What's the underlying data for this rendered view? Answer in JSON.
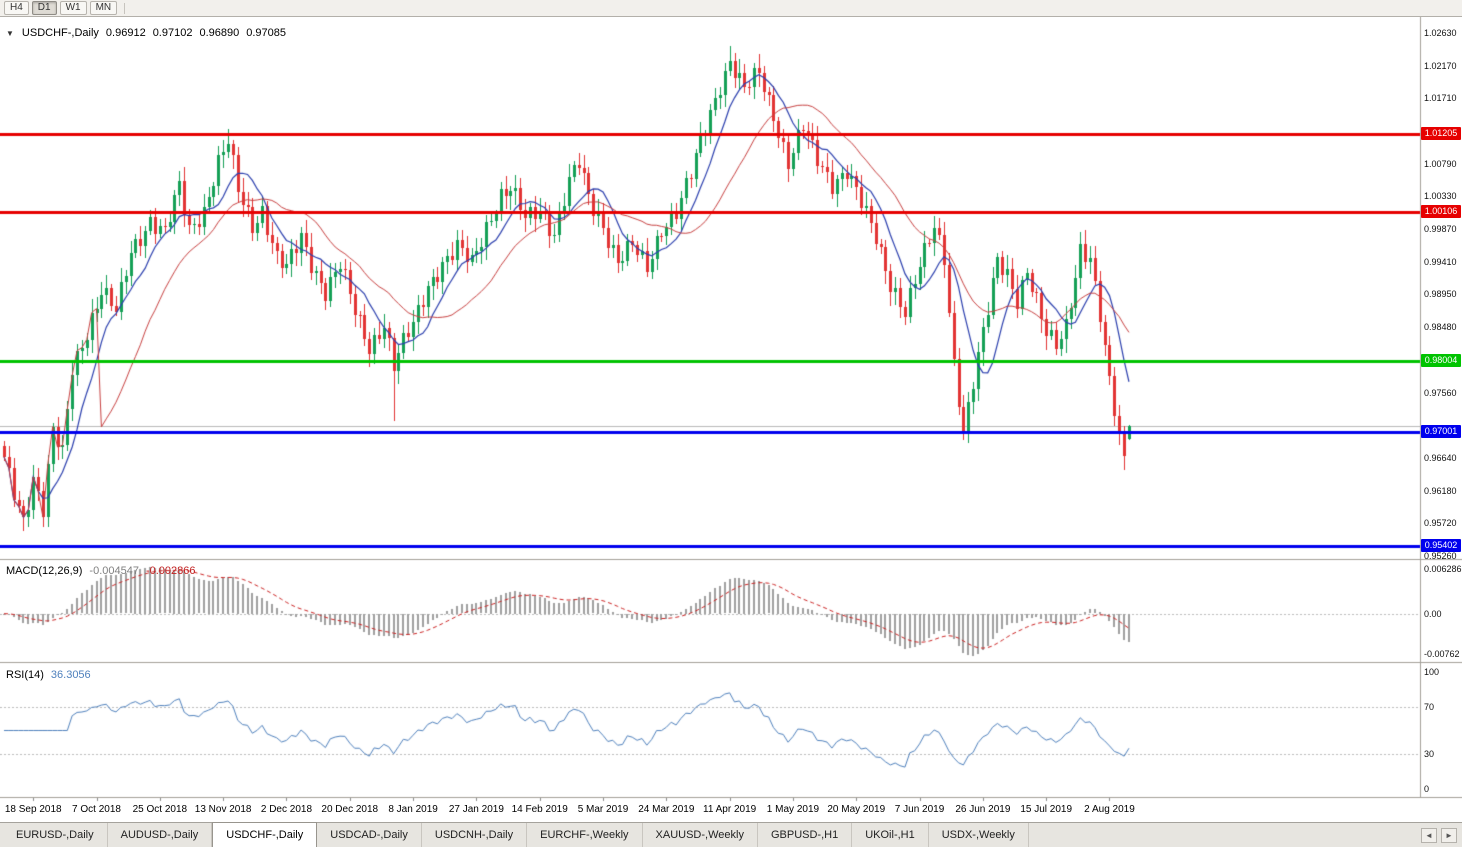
{
  "toolbar": {
    "timeframes": [
      "H4",
      "D1",
      "W1",
      "MN"
    ],
    "active": "D1"
  },
  "icons": {
    "chart_collapse": "▼",
    "tab_scroll_left": "◄",
    "tab_scroll_right": "►"
  },
  "chart_title": {
    "symbol": "USDCHF-,Daily",
    "open": "0.96912",
    "high": "0.97102",
    "low": "0.96890",
    "close": "0.97085"
  },
  "indicators": {
    "macd": {
      "name": "MACD(12,26,9)",
      "value_main": "-0.004547",
      "value_signal": "-0.002866"
    },
    "rsi": {
      "name": "RSI(14)",
      "value": "36.3056"
    }
  },
  "tabs": {
    "items": [
      "EURUSD-,Daily",
      "AUDUSD-,Daily",
      "USDCHF-,Daily",
      "USDCAD-,Daily",
      "USDCNH-,Daily",
      "EURCHF-,Weekly",
      "XAUUSD-,Weekly",
      "GBPUSD-,H1",
      "UKOil-,H1",
      "USDX-,Weekly"
    ],
    "active_index": 2
  },
  "chart_data": {
    "type": "candlestick",
    "symbol": "USDCHF-",
    "timeframe": "Daily",
    "last_quote": {
      "open": 0.96912,
      "high": 0.97102,
      "low": 0.9689,
      "close": 0.97085
    },
    "x_labels": [
      "18 Sep 2018",
      "7 Oct 2018",
      "25 Oct 2018",
      "13 Nov 2018",
      "2 Dec 2018",
      "20 Dec 2018",
      "8 Jan 2019",
      "27 Jan 2019",
      "14 Feb 2019",
      "5 Mar 2019",
      "24 Mar 2019",
      "11 Apr 2019",
      "1 May 2019",
      "20 May 2019",
      "7 Jun 2019",
      "26 Jun 2019",
      "15 Jul 2019",
      "2 Aug 2019"
    ],
    "candles_per_label": 13,
    "total_candles": 232,
    "price_axis": {
      "max": 1.0263,
      "min": 0.9526,
      "ticks": [
        1.0263,
        1.0217,
        1.0171,
        1.0079,
        1.0033,
        0.9987,
        0.9941,
        0.9895,
        0.9848,
        0.9756,
        0.9664,
        0.9618,
        0.9572,
        0.9526
      ]
    },
    "levels": [
      {
        "price": 1.01205,
        "color": "#e60000",
        "width": 3
      },
      {
        "price": 1.00106,
        "color": "#e60000",
        "width": 3
      },
      {
        "price": 0.98004,
        "color": "#00c300",
        "width": 3
      },
      {
        "price": 0.97001,
        "color": "#0000ee",
        "width": 3
      },
      {
        "price": 0.95402,
        "color": "#0000ee",
        "width": 3
      }
    ],
    "bid_line": {
      "price": 0.97085,
      "color": "#b9b9b9"
    },
    "candle_colors": {
      "up": "#15a056",
      "down": "#e23434"
    },
    "ma_lines": [
      {
        "name": "ma-fast",
        "color": "#2b3fae"
      },
      {
        "name": "ma-slow",
        "color": "#c84040"
      }
    ],
    "macd_panel": {
      "params": [
        12,
        26,
        9
      ],
      "hist_color": "#a0a0a0",
      "signal_color": "#cc2222",
      "axis_ticks": [
        "0.006286",
        "0.00",
        "-0.00762"
      ]
    },
    "rsi_panel": {
      "period": 14,
      "line_color": "#4f81bd",
      "levels": [
        70,
        30
      ],
      "axis_ticks": [
        100,
        70,
        30,
        0
      ]
    },
    "close_path_anchors": [
      [
        0,
        0.966
      ],
      [
        2,
        0.9615
      ],
      [
        4,
        0.9578
      ],
      [
        6,
        0.9638
      ],
      [
        8,
        0.9592
      ],
      [
        10,
        0.97
      ],
      [
        12,
        0.9668
      ],
      [
        14,
        0.979
      ],
      [
        17,
        0.9845
      ],
      [
        20,
        0.99
      ],
      [
        23,
        0.9868
      ],
      [
        26,
        0.9955
      ],
      [
        30,
        1.0
      ],
      [
        33,
        0.998
      ],
      [
        36,
        1.0045
      ],
      [
        38,
        0.9985
      ],
      [
        41,
        1.0015
      ],
      [
        44,
        1.008
      ],
      [
        46,
        1.0108
      ],
      [
        48,
        1.004
      ],
      [
        51,
        0.9992
      ],
      [
        53,
        1.0015
      ],
      [
        56,
        0.9945
      ],
      [
        58,
        0.993
      ],
      [
        61,
        0.9975
      ],
      [
        63,
        0.994
      ],
      [
        66,
        0.99
      ],
      [
        69,
        0.9935
      ],
      [
        72,
        0.987
      ],
      [
        75,
        0.9822
      ],
      [
        78,
        0.9855
      ],
      [
        80,
        0.9792
      ],
      [
        82,
        0.9825
      ],
      [
        84,
        0.9852
      ],
      [
        87,
        0.9908
      ],
      [
        90,
        0.9938
      ],
      [
        93,
        0.9958
      ],
      [
        96,
        0.9938
      ],
      [
        99,
        0.9992
      ],
      [
        102,
        1.0035
      ],
      [
        104,
        1.0042
      ],
      [
        107,
        1.0
      ],
      [
        110,
        1.0015
      ],
      [
        113,
        0.9982
      ],
      [
        116,
        1.0052
      ],
      [
        118,
        1.0078
      ],
      [
        120,
        1.003
      ],
      [
        123,
        0.9992
      ],
      [
        126,
        0.9942
      ],
      [
        129,
        0.9962
      ],
      [
        132,
        0.993
      ],
      [
        135,
        0.999
      ],
      [
        138,
        1.0012
      ],
      [
        141,
        1.0062
      ],
      [
        144,
        1.013
      ],
      [
        147,
        1.0192
      ],
      [
        149,
        1.0225
      ],
      [
        152,
        1.0182
      ],
      [
        155,
        1.0205
      ],
      [
        158,
        1.0148
      ],
      [
        161,
        1.0082
      ],
      [
        164,
        1.0128
      ],
      [
        167,
        1.0082
      ],
      [
        170,
        1.0052
      ],
      [
        173,
        1.0072
      ],
      [
        176,
        1.0022
      ],
      [
        179,
        0.9972
      ],
      [
        182,
        0.9912
      ],
      [
        185,
        0.9872
      ],
      [
        188,
        0.9932
      ],
      [
        191,
        0.9988
      ],
      [
        193,
        0.9948
      ],
      [
        195,
        0.98
      ],
      [
        197,
        0.9702
      ],
      [
        199,
        0.9768
      ],
      [
        202,
        0.9872
      ],
      [
        204,
        0.9945
      ],
      [
        206,
        0.9928
      ],
      [
        208,
        0.9888
      ],
      [
        210,
        0.9925
      ],
      [
        212,
        0.988
      ],
      [
        214,
        0.9838
      ],
      [
        216,
        0.9825
      ],
      [
        218,
        0.9855
      ],
      [
        221,
        0.9958
      ],
      [
        223,
        0.994
      ],
      [
        225,
        0.986
      ],
      [
        227,
        0.9772
      ],
      [
        229,
        0.97
      ],
      [
        230,
        0.9668
      ],
      [
        231,
        0.97085
      ]
    ],
    "wick_overrides": {
      "4": {
        "low": 0.9572
      },
      "46": {
        "high": 1.0128
      },
      "80": {
        "low": 0.9716
      },
      "149": {
        "high": 1.0245
      },
      "155": {
        "high": 1.0232
      },
      "197": {
        "low": 0.9694
      },
      "230": {
        "low": 0.966
      }
    }
  }
}
